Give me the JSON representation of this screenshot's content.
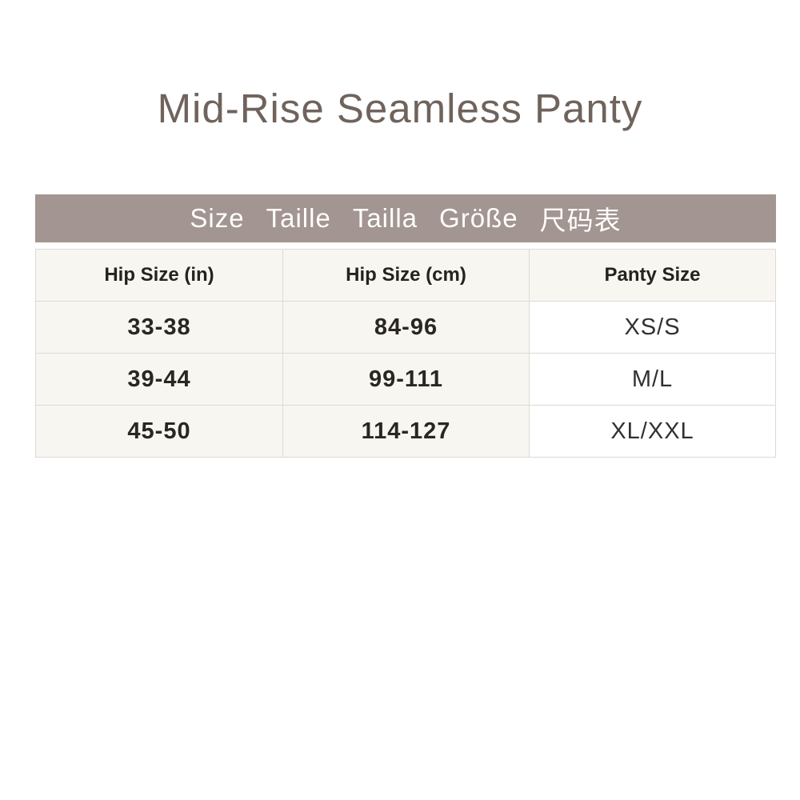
{
  "chart_data": {
    "type": "table",
    "title": "Mid-Rise Seamless Panty",
    "banner_labels": [
      "Size",
      "Taille",
      "Tailla",
      "Größe",
      "尺码表"
    ],
    "columns": [
      "Hip Size (in)",
      "Hip Size (cm)",
      "Panty Size"
    ],
    "rows": [
      [
        "33-38",
        "84-96",
        "XS/S"
      ],
      [
        "39-44",
        "99-111",
        "M/L"
      ],
      [
        "45-50",
        "114-127",
        "XL/XXL"
      ]
    ],
    "layout": "banner header above 3-column table, 3 data rows, grid lines on"
  },
  "colors": {
    "page_background": "#ffffff",
    "title_text": "#6f635c",
    "banner_background": "#a39591",
    "banner_text": "#ffffff",
    "cell_background": "#f8f6f1",
    "panty_size_cell_background": "#ffffff",
    "cell_text": "#262220",
    "table_border": "#dedad4"
  }
}
